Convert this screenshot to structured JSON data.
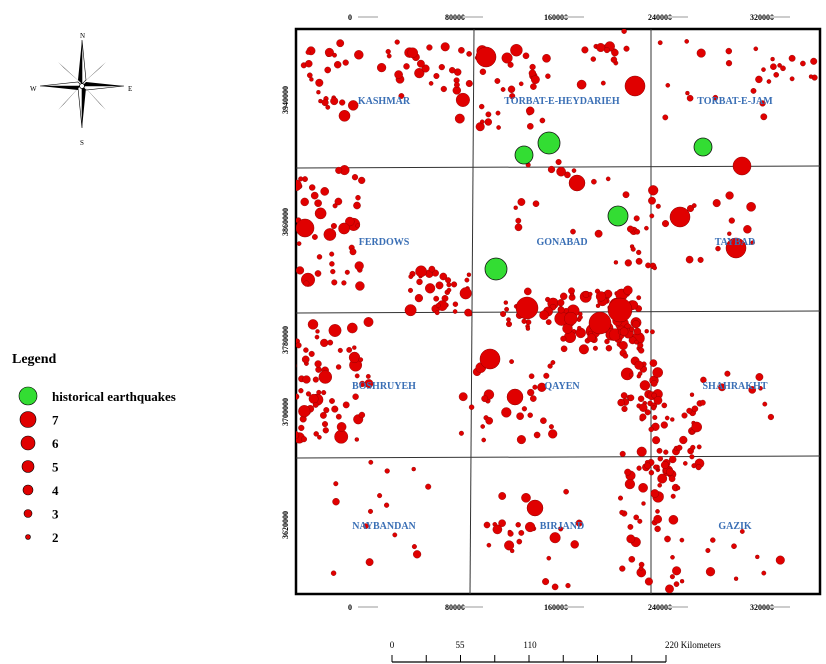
{
  "map": {
    "regions": [
      {
        "name": "KASHMAR",
        "col": 0,
        "row": 0
      },
      {
        "name": "TORBAT-E-HEYDARIEH",
        "col": 1,
        "row": 0
      },
      {
        "name": "TORBAT-E-JAM",
        "col": 2,
        "row": 0
      },
      {
        "name": "FERDOWS",
        "col": 0,
        "row": 1
      },
      {
        "name": "GONABAD",
        "col": 1,
        "row": 1
      },
      {
        "name": "TAYBAD",
        "col": 2,
        "row": 1
      },
      {
        "name": "BOSHRUYEH",
        "col": 0,
        "row": 2
      },
      {
        "name": "QAYEN",
        "col": 1,
        "row": 2
      },
      {
        "name": "SHAHRAKHT",
        "col": 2,
        "row": 2
      },
      {
        "name": "NAYBANDAN",
        "col": 0,
        "row": 3
      },
      {
        "name": "BIRJAND",
        "col": 1,
        "row": 3
      },
      {
        "name": "GAZIK",
        "col": 2,
        "row": 3
      }
    ],
    "x_ticks": [
      "0",
      "80000",
      "160000",
      "240000",
      "320000"
    ],
    "y_ticks": [
      "3940000",
      "3860000",
      "3780000",
      "3700000",
      "3620000"
    ],
    "colors": {
      "earthquake": "#e00000",
      "historical": "#33dd33",
      "region_label": "#3a6fb5"
    }
  },
  "legend": {
    "title": "Legend",
    "items": [
      {
        "label": "historical earthquakes",
        "kind": "historical"
      },
      {
        "label": "7",
        "kind": "magnitude"
      },
      {
        "label": "6",
        "kind": "magnitude"
      },
      {
        "label": "5",
        "kind": "magnitude"
      },
      {
        "label": "4",
        "kind": "magnitude"
      },
      {
        "label": "3",
        "kind": "magnitude"
      },
      {
        "label": "2",
        "kind": "magnitude"
      }
    ]
  },
  "compass": {
    "n": "N",
    "s": "S",
    "e": "E",
    "w": "W"
  },
  "scalebar": {
    "labels": [
      "0",
      "55",
      "110",
      "220 Kilometers"
    ]
  }
}
